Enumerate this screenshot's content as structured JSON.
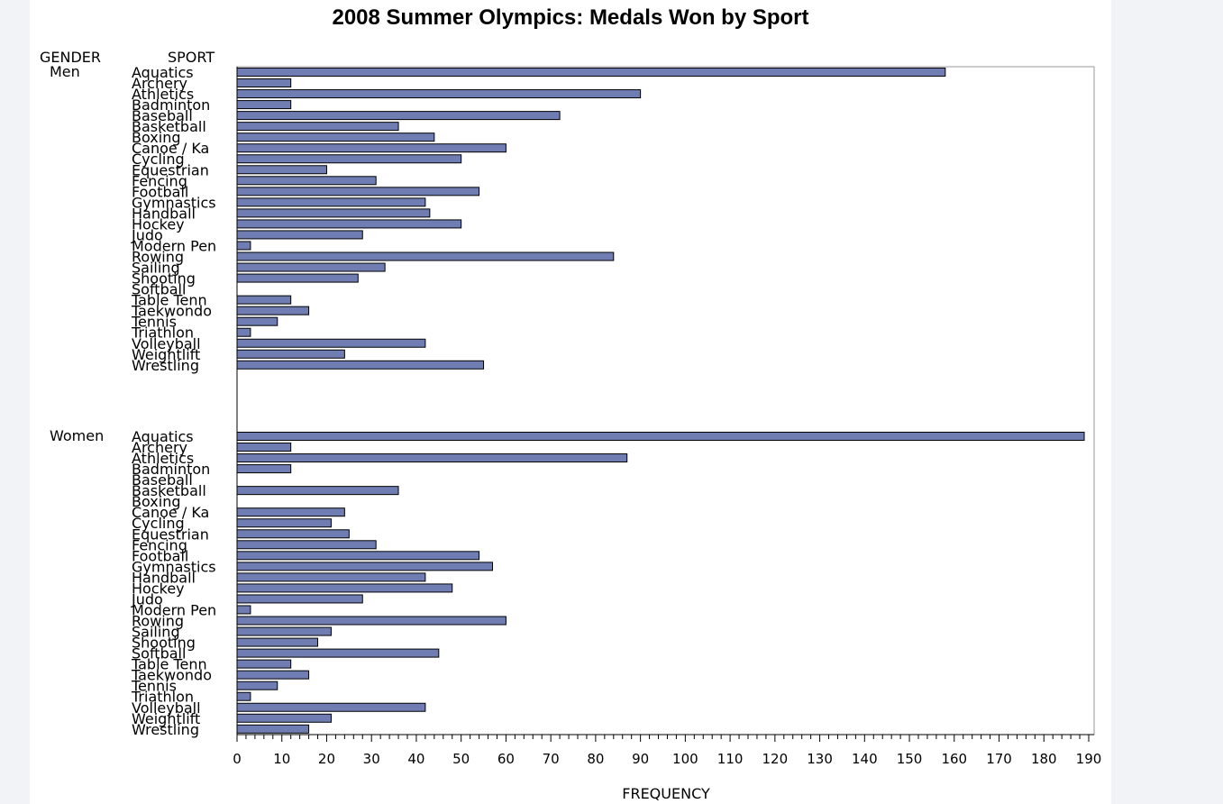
{
  "chart_data": {
    "type": "bar",
    "orientation": "horizontal",
    "title": "2008 Summer Olympics: Medals Won by Sport",
    "xlabel": "FREQUENCY",
    "group_header": "GENDER",
    "category_header": "SPORT",
    "xlim": [
      0,
      190
    ],
    "xticks": [
      0,
      10,
      20,
      30,
      40,
      50,
      60,
      70,
      80,
      90,
      100,
      110,
      120,
      130,
      140,
      150,
      160,
      170,
      180,
      190
    ],
    "minor_tick_step": 2,
    "bar_color": "#6f7db3",
    "bar_outline": "#000000",
    "groups": [
      {
        "name": "Men",
        "categories": [
          "Aquatics",
          "Archery",
          "Athletics",
          "Badminton",
          "Baseball",
          "Basketball",
          "Boxing",
          "Canoe / Ka",
          "Cycling",
          "Equestrian",
          "Fencing",
          "Football",
          "Gymnastics",
          "Handball",
          "Hockey",
          "Judo",
          "Modern Pen",
          "Rowing",
          "Sailing",
          "Shooting",
          "Softball",
          "Table Tenn",
          "Taekwondo",
          "Tennis",
          "Triathlon",
          "Volleyball",
          "Weightlift",
          "Wrestling"
        ],
        "values": [
          158,
          12,
          90,
          12,
          72,
          36,
          44,
          60,
          50,
          20,
          31,
          54,
          42,
          43,
          50,
          28,
          3,
          84,
          33,
          27,
          0,
          12,
          16,
          9,
          3,
          42,
          24,
          55
        ]
      },
      {
        "name": "Women",
        "categories": [
          "Aquatics",
          "Archery",
          "Athletics",
          "Badminton",
          "Baseball",
          "Basketball",
          "Boxing",
          "Canoe / Ka",
          "Cycling",
          "Equestrian",
          "Fencing",
          "Football",
          "Gymnastics",
          "Handball",
          "Hockey",
          "Judo",
          "Modern Pen",
          "Rowing",
          "Sailing",
          "Shooting",
          "Softball",
          "Table Tenn",
          "Taekwondo",
          "Tennis",
          "Triathlon",
          "Volleyball",
          "Weightlift",
          "Wrestling"
        ],
        "values": [
          189,
          12,
          87,
          12,
          0,
          36,
          0,
          24,
          21,
          25,
          31,
          54,
          57,
          42,
          48,
          28,
          3,
          60,
          21,
          18,
          45,
          12,
          16,
          9,
          3,
          42,
          21,
          16
        ]
      }
    ]
  }
}
